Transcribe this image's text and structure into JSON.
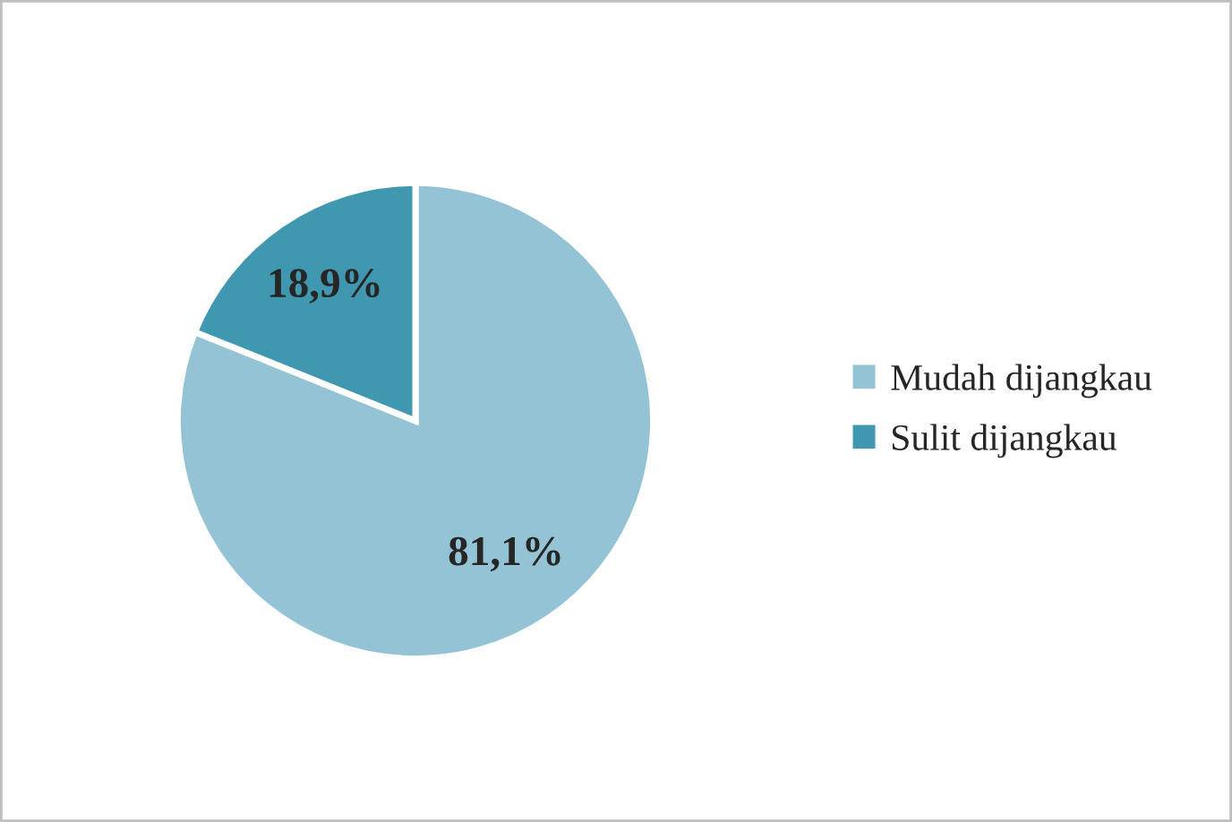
{
  "chart_data": {
    "type": "pie",
    "categories": [
      "Mudah dijangkau",
      "Sulit dijangkau"
    ],
    "values": [
      81.1,
      18.9
    ],
    "colors": [
      "#93c3d4",
      "#4097b0"
    ],
    "value_labels": [
      "81,1%",
      "18,9%"
    ],
    "legend": "right"
  }
}
